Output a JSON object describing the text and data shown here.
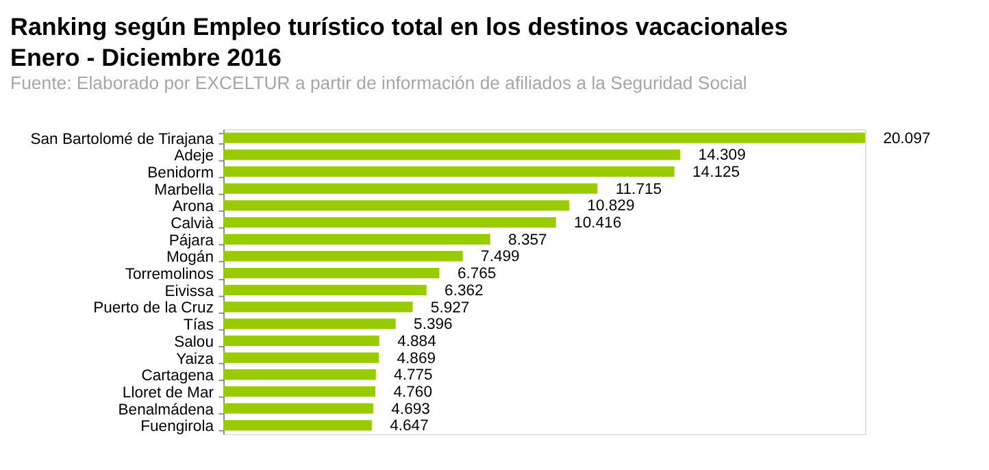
{
  "chart_data": {
    "type": "bar",
    "orientation": "horizontal",
    "title": "Ranking según Empleo turístico total en los destinos vacacionales",
    "subtitle": "Enero - Diciembre 2016",
    "annotations": [
      "Fuente: Elaborado por EXCELTUR a partir de información de afiliados a la Seguridad Social"
    ],
    "categories": [
      "San Bartolomé de Tirajana",
      "Adeje",
      "Benidorm",
      "Marbella",
      "Arona",
      "Calvià",
      "Pájara",
      "Mogán",
      "Torremolinos",
      "Eivissa",
      "Puerto de la Cruz",
      "Tías",
      "Salou",
      "Yaiza",
      "Cartagena",
      "Lloret de Mar",
      "Benalmádena",
      "Fuengirola"
    ],
    "values": [
      20097,
      14309,
      14125,
      11715,
      10829,
      10416,
      8357,
      7499,
      6765,
      6362,
      5927,
      5396,
      4884,
      4869,
      4775,
      4760,
      4693,
      4647
    ],
    "value_labels": [
      "20.097",
      "14.309",
      "14.125",
      "11.715",
      "10.829",
      "10.416",
      "8.357",
      "7.499",
      "6.765",
      "6.362",
      "5.927",
      "5.396",
      "4.884",
      "4.869",
      "4.775",
      "4.760",
      "4.693",
      "4.647"
    ],
    "color": "#99cc00",
    "tick_labels": "y"
  }
}
